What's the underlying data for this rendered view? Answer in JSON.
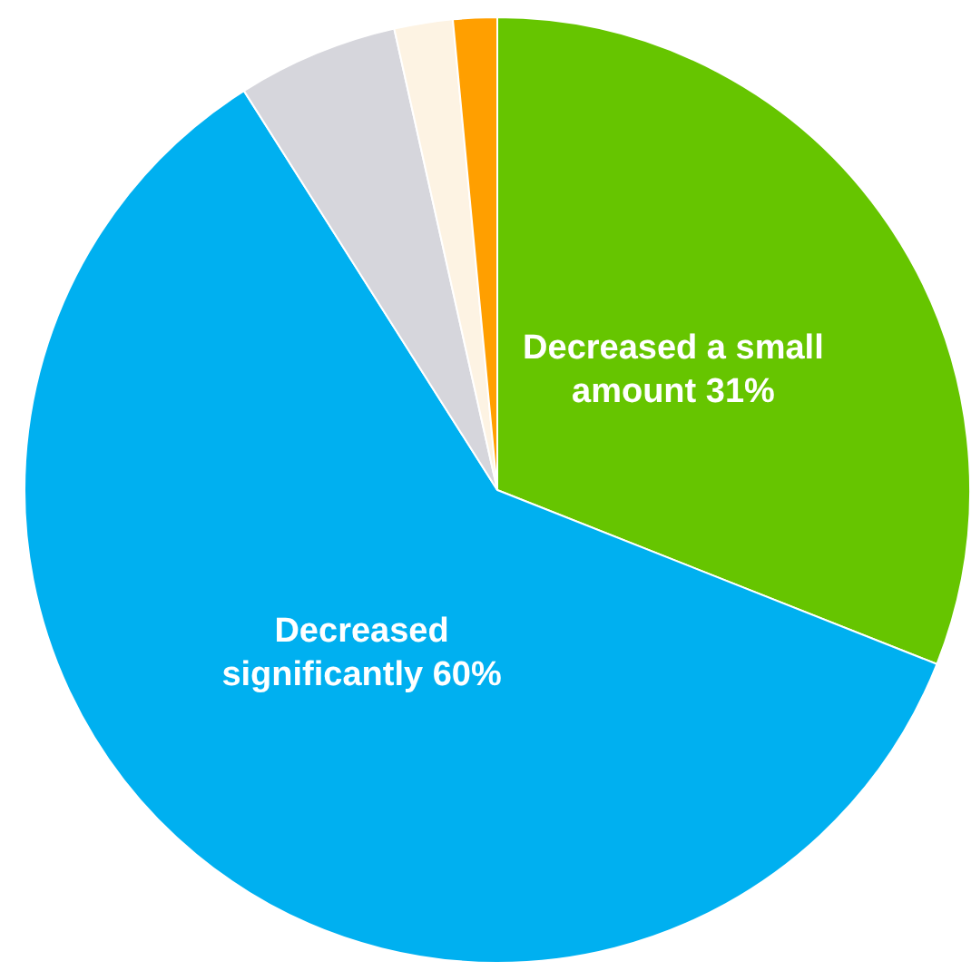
{
  "chart_data": {
    "type": "pie",
    "categories": [
      "Decreased a small amount",
      "Decreased significantly",
      null,
      null,
      null
    ],
    "values": [
      31,
      60,
      5.5,
      2,
      1.5
    ],
    "colors": [
      "#66c500",
      "#00b0f0",
      "#d6d6dc",
      "#fdf3e3",
      "#ff9f00"
    ],
    "value_labels": [
      "31%",
      "60%",
      null,
      null,
      null
    ],
    "legend": false
  }
}
